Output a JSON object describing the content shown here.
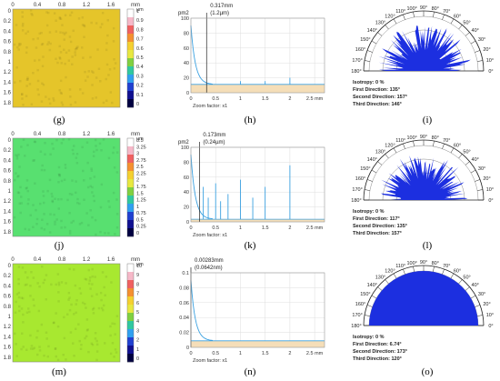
{
  "units": "µm",
  "captions": [
    "(g)",
    "(h)",
    "(i)",
    "(j)",
    "(k)",
    "(l)",
    "(m)",
    "(n)",
    "(o)"
  ],
  "maps": {
    "x_ticks": [
      "0",
      "0.4",
      "0.8",
      "1.2",
      "1.6",
      "mm"
    ],
    "y_ticks": [
      "0",
      "0.2",
      "0.4",
      "0.6",
      "0.8",
      "1",
      "1.2",
      "1.4",
      "1.6",
      "1.8"
    ],
    "rows": [
      {
        "color": "#E5C52A",
        "scale_colors": [
          "#ffffff",
          "#f6b8c8",
          "#f06060",
          "#f59030",
          "#f5d030",
          "#e8e840",
          "#80d040",
          "#30c8a0",
          "#30a0f0",
          "#2040d0",
          "#101090",
          "#000040"
        ],
        "scale_labels": [
          "µm",
          "1",
          "0.9",
          "0.8",
          "0.7",
          "0.6",
          "0.5",
          "0.4",
          "0.3",
          "0.2",
          "0.1",
          "0"
        ]
      },
      {
        "color": "#58E070",
        "scale_colors": [
          "#ffffff",
          "#f6b8c8",
          "#f06060",
          "#f59030",
          "#f5d030",
          "#e8e840",
          "#80d040",
          "#30c8a0",
          "#30a0f0",
          "#2040d0",
          "#101090",
          "#000040"
        ],
        "scale_labels": [
          "µm",
          "3.5",
          "3.25",
          "3",
          "2.75",
          "2.5",
          "2.25",
          "2",
          "1.75",
          "1.5",
          "1.25",
          "1",
          "0.75",
          "0.5",
          "0.25",
          "0"
        ]
      },
      {
        "color": "#A8E830",
        "scale_colors": [
          "#ffffff",
          "#f6b8c8",
          "#f06060",
          "#f59030",
          "#f5d030",
          "#e8e840",
          "#80d040",
          "#30c8a0",
          "#30a0f0",
          "#2040d0",
          "#101090",
          "#000040"
        ],
        "scale_labels": [
          "µm",
          "10",
          "9",
          "8",
          "7",
          "6",
          "5",
          "4",
          "3",
          "2",
          "1",
          "0"
        ]
      }
    ]
  },
  "spectra": {
    "x_ticks": [
      "0",
      "0.5",
      "1",
      "1.5",
      "2",
      "2.5 mm"
    ],
    "zoom_label": "Zoom factor: x1",
    "rows": [
      {
        "yunit": "pm2",
        "annot1": "0.317mm",
        "annot2": "(1.2µm)",
        "y_ticks": [
          "100",
          "80",
          "60",
          "40",
          "20",
          "0"
        ],
        "marker_x": 0.317,
        "peaks": [
          {
            "x": 1.0,
            "h": 0.05
          },
          {
            "x": 1.5,
            "h": 0.05
          },
          {
            "x": 2.0,
            "h": 0.1
          }
        ],
        "baseline": 0.32
      },
      {
        "yunit": "pm2",
        "annot1": "0.173mm",
        "annot2": "(0.24µm)",
        "y_ticks": [
          "100",
          "80",
          "60",
          "40",
          "20",
          "0"
        ],
        "marker_x": 0.173,
        "peaks": [
          {
            "x": 0.25,
            "h": 0.45
          },
          {
            "x": 0.35,
            "h": 0.3
          },
          {
            "x": 0.5,
            "h": 0.5
          },
          {
            "x": 0.6,
            "h": 0.25
          },
          {
            "x": 0.75,
            "h": 0.35
          },
          {
            "x": 1.0,
            "h": 0.55
          },
          {
            "x": 1.25,
            "h": 0.3
          },
          {
            "x": 1.5,
            "h": 0.45
          },
          {
            "x": 2.0,
            "h": 0.75
          }
        ],
        "baseline": 0.1
      },
      {
        "yunit": "",
        "annot1": "0.00283mm",
        "annot2": "(0.0642nm)",
        "y_ticks": [
          "0.1",
          "0.08",
          "0.06",
          "0.04",
          "0.02",
          "0"
        ],
        "marker_x": 0.0,
        "peaks": [],
        "baseline": 0.25
      }
    ]
  },
  "roses": {
    "angle_labels": [
      "0°",
      "10°",
      "20°",
      "30°",
      "40°",
      "50°",
      "60°",
      "70°",
      "80°",
      "90°",
      "100°",
      "110°",
      "120°",
      "130°",
      "140°",
      "150°",
      "160°",
      "170°",
      "180°"
    ],
    "rows": [
      {
        "isotropy": "Isotropy: 0 %",
        "first": "First Direction: 135°",
        "second": "Second Direction: 157°",
        "third": "Third Direction: 146°",
        "fill": "spiky"
      },
      {
        "isotropy": "Isotropy: 0 %",
        "first": "First Direction: 117°",
        "second": "Second Direction: 135°",
        "third": "Third Direction: 157°",
        "fill": "spiky"
      },
      {
        "isotropy": "Isotropy: 0 %",
        "first": "First Direction: 6.74°",
        "second": "Second Direction: 173°",
        "third": "Third Direction: 120°",
        "fill": "full"
      }
    ]
  }
}
